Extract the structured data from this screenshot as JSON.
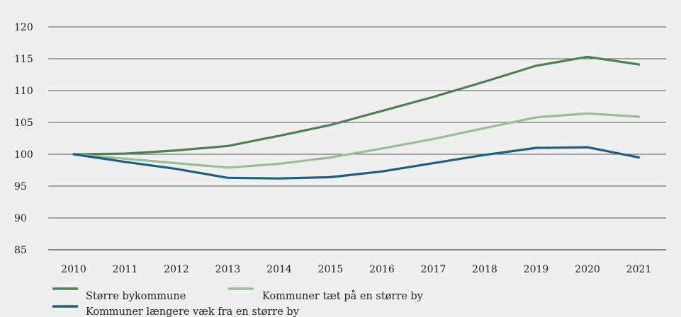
{
  "chart_data": {
    "type": "line",
    "title": "",
    "xlabel": "",
    "ylabel": "",
    "x": [
      "2010",
      "2011",
      "2012",
      "2013",
      "2014",
      "2015",
      "2016",
      "2017",
      "2018",
      "2019",
      "2020",
      "2021"
    ],
    "yticks": [
      "120",
      "115",
      "110",
      "105",
      "100",
      "95",
      "90",
      "85"
    ],
    "ylim": [
      82,
      122
    ],
    "grid": true,
    "legend_position": "bottom",
    "series": [
      {
        "name": "Større bykommune",
        "color": "#4f7f58",
        "values": [
          100,
          100.1,
          100.6,
          101.3,
          102.9,
          104.6,
          106.8,
          109.0,
          111.4,
          113.9,
          115.3,
          114.1
        ]
      },
      {
        "name": "Kommuner tæt på en større by",
        "color": "#9dbc99",
        "values": [
          100,
          99.3,
          98.6,
          97.9,
          98.5,
          99.5,
          100.9,
          102.4,
          104.1,
          105.8,
          106.4,
          105.9
        ]
      },
      {
        "name": "Kommuner længere væk fra en større by",
        "color": "#1f5f7b",
        "values": [
          100,
          98.8,
          97.7,
          96.3,
          96.2,
          96.4,
          97.3,
          98.6,
          99.9,
          101.0,
          101.1,
          99.5
        ]
      }
    ]
  }
}
